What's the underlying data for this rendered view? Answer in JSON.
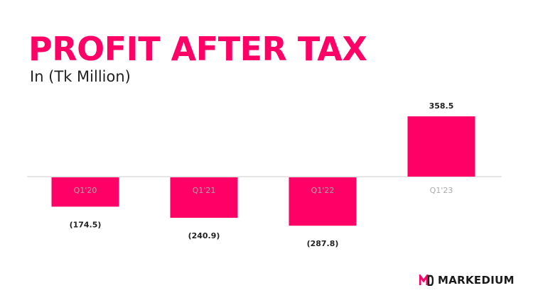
{
  "header": {
    "title": "PROFIT AFTER TAX",
    "subtitle": "In (Tk Million)"
  },
  "colors": {
    "accent": "#ff0066",
    "axis": "#cccccc",
    "category_label": "#aaaaaa",
    "value_label": "#222222"
  },
  "chart_data": {
    "type": "bar",
    "categories": [
      "Q1'20",
      "Q1'21",
      "Q1'22",
      "Q1'23"
    ],
    "values": [
      -174.5,
      -240.9,
      -287.8,
      358.5
    ],
    "value_labels": [
      "(174.5)",
      "(240.9)",
      "(287.8)",
      "358.5"
    ],
    "title": "PROFIT AFTER TAX",
    "subtitle": "In (Tk Million)",
    "xlabel": "",
    "ylabel": "",
    "ylim": [
      -300,
      400
    ],
    "grid": false,
    "legend": "none"
  },
  "brand": {
    "logo_icon": "markedium-logo-icon",
    "name": "MARKEDIUM"
  }
}
